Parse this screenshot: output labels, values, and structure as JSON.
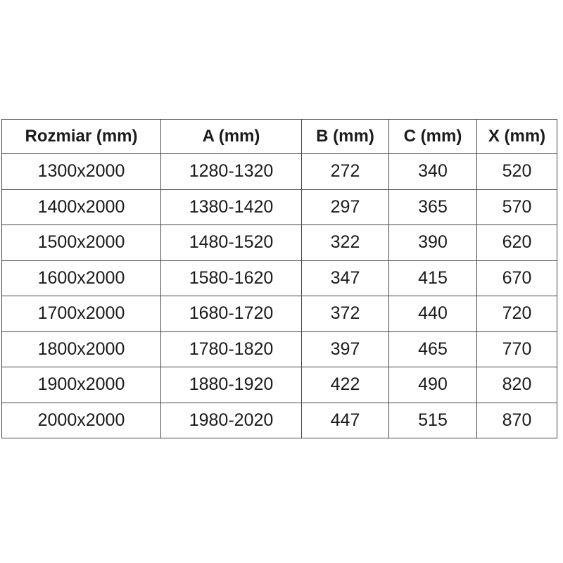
{
  "chart_data": {
    "type": "table",
    "title": "",
    "columns": [
      "Rozmiar (mm)",
      "A (mm)",
      "B (mm)",
      "C (mm)",
      "X (mm)"
    ],
    "rows": [
      [
        "1300x2000",
        "1280-1320",
        "272",
        "340",
        "520"
      ],
      [
        "1400x2000",
        "1380-1420",
        "297",
        "365",
        "570"
      ],
      [
        "1500x2000",
        "1480-1520",
        "322",
        "390",
        "620"
      ],
      [
        "1600x2000",
        "1580-1620",
        "347",
        "415",
        "670"
      ],
      [
        "1700x2000",
        "1680-1720",
        "372",
        "440",
        "720"
      ],
      [
        "1800x2000",
        "1780-1820",
        "397",
        "465",
        "770"
      ],
      [
        "1900x2000",
        "1880-1920",
        "422",
        "490",
        "820"
      ],
      [
        "2000x2000",
        "1980-2020",
        "447",
        "515",
        "870"
      ]
    ]
  },
  "style": {
    "border_color": "#474747",
    "text_color": "#1b1b1b",
    "background_color": "#ffffff"
  }
}
